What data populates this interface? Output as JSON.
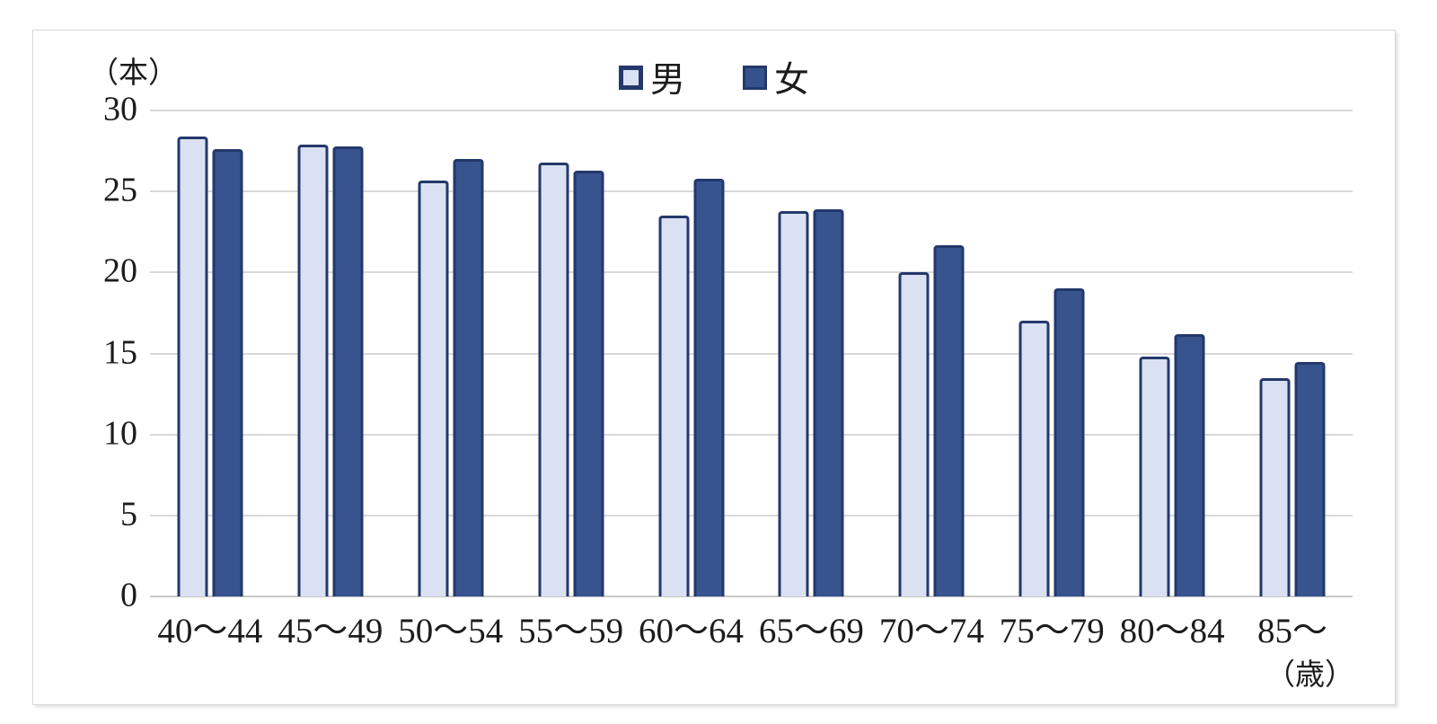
{
  "chart_data": {
    "type": "bar",
    "title": "",
    "y_axis_unit_label": "（本）",
    "x_axis_unit_label": "（歳）",
    "categories": [
      "40～44",
      "45～49",
      "50～54",
      "55～59",
      "60～64",
      "65～69",
      "70～74",
      "75～79",
      "80～84",
      "85～"
    ],
    "series": [
      {
        "name": "男",
        "fill_color": "#dae1f2",
        "border_color": "#24386b",
        "values": [
          28.4,
          27.9,
          25.7,
          26.8,
          23.5,
          23.8,
          20.0,
          17.0,
          14.8,
          13.5
        ]
      },
      {
        "name": "女",
        "fill_color": "#37548f",
        "border_color": "#24386b",
        "values": [
          27.6,
          27.8,
          27.0,
          26.3,
          25.8,
          23.9,
          21.7,
          19.0,
          16.2,
          14.5
        ]
      }
    ],
    "ylim": [
      0,
      30
    ],
    "y_ticks": [
      "30",
      "25",
      "20",
      "15",
      "10",
      "5",
      "0"
    ],
    "grid": true,
    "gridline_color": "#d9d9d9",
    "legend_position": "top-center"
  }
}
